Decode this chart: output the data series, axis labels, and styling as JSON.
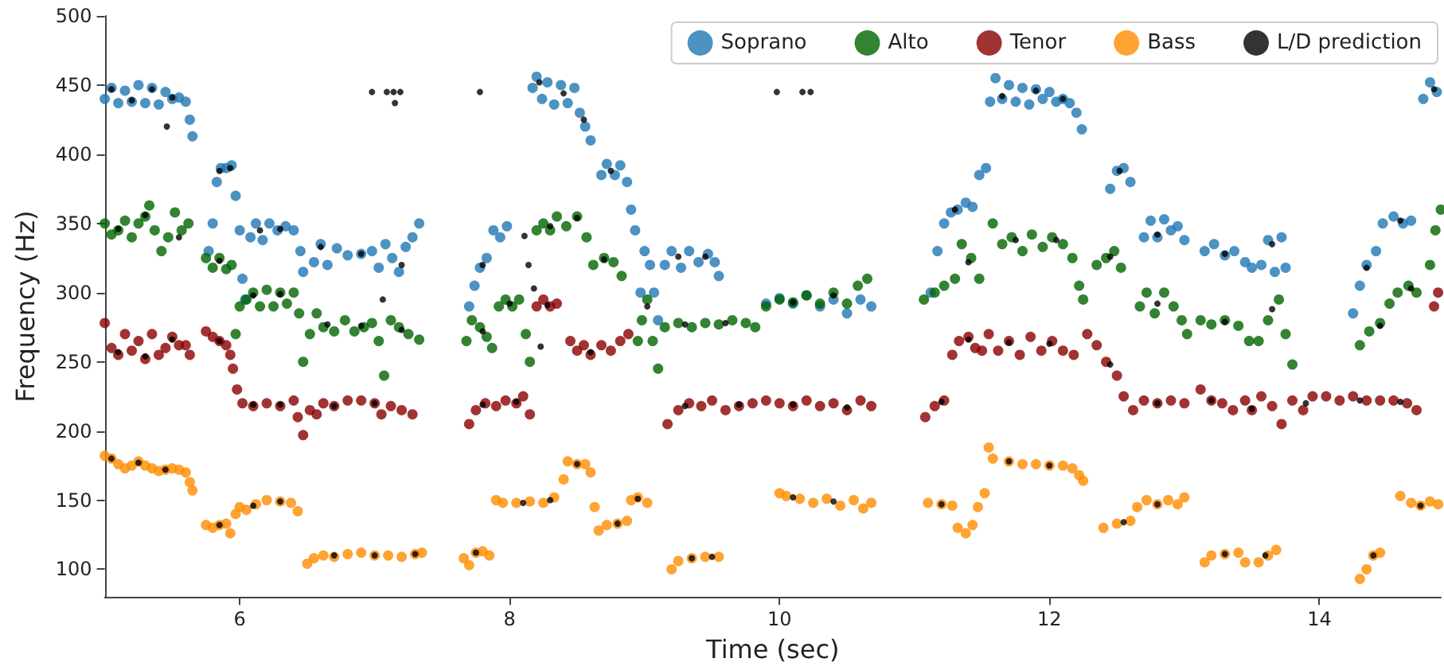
{
  "chart_data": {
    "type": "scatter",
    "xlabel": "Time (sec)",
    "ylabel": "Frequency (Hz)",
    "xlim": [
      5,
      14.9
    ],
    "ylim": [
      80,
      500
    ],
    "xticks": [
      6,
      8,
      10,
      12,
      14
    ],
    "yticks": [
      100,
      150,
      200,
      250,
      300,
      350,
      400,
      450,
      500
    ],
    "legend": "top right",
    "marker": "circle",
    "series": [
      {
        "name": "Soprano",
        "color": "#1f77b4",
        "x": [
          5.0,
          5.05,
          5.1,
          5.15,
          5.2,
          5.25,
          5.3,
          5.35,
          5.4,
          5.45,
          5.5,
          5.55,
          5.6,
          5.63,
          5.65,
          5.77,
          5.8,
          5.83,
          5.86,
          5.9,
          5.94,
          5.97,
          6.0,
          6.02,
          6.04,
          6.08,
          6.12,
          6.17,
          6.22,
          6.28,
          6.34,
          6.4,
          6.45,
          6.47,
          6.55,
          6.6,
          6.65,
          6.72,
          6.8,
          6.9,
          6.98,
          7.03,
          7.08,
          7.13,
          7.18,
          7.23,
          7.28,
          7.33,
          7.7,
          7.74,
          7.78,
          7.83,
          7.88,
          7.93,
          7.98,
          8.17,
          8.2,
          8.24,
          8.28,
          8.33,
          8.38,
          8.43,
          8.48,
          8.52,
          8.56,
          8.6,
          8.68,
          8.72,
          8.78,
          8.82,
          8.87,
          8.9,
          8.93,
          8.97,
          9.0,
          9.04,
          9.07,
          9.1,
          9.15,
          9.2,
          9.27,
          9.33,
          9.4,
          9.47,
          9.52,
          9.55,
          9.9,
          10.0,
          10.1,
          10.2,
          10.3,
          10.4,
          10.5,
          10.6,
          10.68,
          11.12,
          11.17,
          11.22,
          11.27,
          11.32,
          11.38,
          11.43,
          11.48,
          11.53,
          11.56,
          11.6,
          11.65,
          11.7,
          11.75,
          11.8,
          11.85,
          11.9,
          11.95,
          12.0,
          12.05,
          12.1,
          12.15,
          12.2,
          12.24,
          12.45,
          12.5,
          12.55,
          12.6,
          12.7,
          12.75,
          12.8,
          12.85,
          12.9,
          12.95,
          13.0,
          13.15,
          13.22,
          13.3,
          13.37,
          13.45,
          13.5,
          13.57,
          13.62,
          13.67,
          13.72,
          13.75,
          14.25,
          14.3,
          14.35,
          14.42,
          14.47,
          14.55,
          14.62,
          14.68,
          14.77,
          14.82,
          14.87
        ],
        "values": [
          440,
          448,
          437,
          446,
          438,
          450,
          437,
          448,
          436,
          445,
          440,
          441,
          438,
          425,
          413,
          330,
          350,
          380,
          390,
          390,
          392,
          370,
          345,
          310,
          295,
          340,
          350,
          338,
          350,
          345,
          348,
          345,
          330,
          315,
          322,
          335,
          320,
          332,
          327,
          328,
          330,
          318,
          335,
          325,
          315,
          333,
          340,
          350,
          290,
          305,
          318,
          325,
          345,
          340,
          348,
          448,
          456,
          440,
          452,
          436,
          450,
          437,
          448,
          430,
          420,
          410,
          385,
          393,
          385,
          392,
          380,
          360,
          345,
          300,
          330,
          320,
          300,
          280,
          320,
          330,
          318,
          330,
          322,
          328,
          322,
          312,
          292,
          296,
          292,
          298,
          290,
          295,
          285,
          295,
          290,
          300,
          330,
          350,
          358,
          360,
          365,
          362,
          385,
          390,
          438,
          455,
          440,
          450,
          438,
          448,
          436,
          447,
          440,
          445,
          438,
          440,
          437,
          430,
          418,
          375,
          388,
          390,
          380,
          340,
          352,
          340,
          353,
          345,
          348,
          338,
          330,
          335,
          327,
          330,
          322,
          318,
          320,
          338,
          315,
          340,
          318,
          285,
          305,
          320,
          330,
          350,
          355,
          350,
          352,
          440,
          452,
          445
        ]
      },
      {
        "name": "Alto",
        "color": "#006400",
        "x": [
          5.0,
          5.05,
          5.1,
          5.15,
          5.2,
          5.25,
          5.3,
          5.33,
          5.37,
          5.42,
          5.47,
          5.52,
          5.57,
          5.62,
          5.75,
          5.8,
          5.85,
          5.9,
          5.94,
          5.97,
          6.0,
          6.05,
          6.1,
          6.15,
          6.2,
          6.25,
          6.3,
          6.35,
          6.4,
          6.44,
          6.47,
          6.52,
          6.57,
          6.62,
          6.7,
          6.78,
          6.85,
          6.92,
          6.98,
          7.03,
          7.07,
          7.12,
          7.18,
          7.25,
          7.33,
          7.68,
          7.72,
          7.78,
          7.83,
          7.87,
          7.92,
          7.97,
          8.02,
          8.07,
          8.12,
          8.15,
          8.2,
          8.25,
          8.3,
          8.35,
          8.42,
          8.5,
          8.57,
          8.62,
          8.7,
          8.77,
          8.83,
          8.95,
          8.98,
          9.02,
          9.06,
          9.1,
          9.15,
          9.25,
          9.35,
          9.45,
          9.55,
          9.65,
          9.75,
          9.82,
          9.9,
          10.0,
          10.1,
          10.2,
          10.3,
          10.4,
          10.5,
          10.58,
          10.65,
          11.07,
          11.15,
          11.22,
          11.3,
          11.35,
          11.42,
          11.48,
          11.58,
          11.65,
          11.72,
          11.8,
          11.87,
          11.95,
          12.02,
          12.1,
          12.17,
          12.22,
          12.25,
          12.35,
          12.42,
          12.48,
          12.53,
          12.67,
          12.72,
          12.78,
          12.85,
          12.92,
          12.98,
          13.02,
          13.12,
          13.2,
          13.3,
          13.4,
          13.48,
          13.55,
          13.62,
          13.7,
          13.75,
          13.8,
          14.3,
          14.37,
          14.45,
          14.52,
          14.58,
          14.66,
          14.72,
          14.82,
          14.86,
          14.9
        ],
        "values": [
          350,
          342,
          345,
          352,
          340,
          350,
          355,
          363,
          345,
          330,
          340,
          358,
          345,
          350,
          325,
          318,
          325,
          317,
          320,
          270,
          290,
          295,
          300,
          290,
          302,
          290,
          300,
          292,
          300,
          285,
          250,
          270,
          285,
          275,
          272,
          280,
          272,
          275,
          278,
          265,
          240,
          280,
          275,
          270,
          266,
          265,
          280,
          275,
          268,
          260,
          290,
          295,
          290,
          295,
          270,
          250,
          345,
          350,
          345,
          355,
          348,
          355,
          340,
          320,
          325,
          322,
          312,
          265,
          280,
          295,
          265,
          245,
          275,
          278,
          275,
          278,
          277,
          280,
          278,
          275,
          290,
          295,
          293,
          298,
          292,
          300,
          292,
          305,
          310,
          295,
          300,
          305,
          310,
          335,
          325,
          310,
          350,
          335,
          340,
          330,
          342,
          333,
          340,
          335,
          325,
          305,
          295,
          320,
          325,
          330,
          318,
          290,
          300,
          285,
          300,
          290,
          280,
          270,
          280,
          277,
          280,
          276,
          265,
          265,
          280,
          295,
          270,
          248,
          262,
          272,
          278,
          292,
          300,
          305,
          300,
          320,
          345,
          360
        ]
      },
      {
        "name": "Tenor",
        "color": "#8b0000",
        "x": [
          5.0,
          5.05,
          5.1,
          5.15,
          5.2,
          5.25,
          5.3,
          5.35,
          5.4,
          5.45,
          5.5,
          5.55,
          5.6,
          5.63,
          5.75,
          5.8,
          5.85,
          5.9,
          5.93,
          5.95,
          5.98,
          6.02,
          6.1,
          6.2,
          6.3,
          6.4,
          6.43,
          6.47,
          6.52,
          6.57,
          6.62,
          6.7,
          6.8,
          6.9,
          7.0,
          7.05,
          7.12,
          7.2,
          7.28,
          7.7,
          7.75,
          7.82,
          7.9,
          7.97,
          8.05,
          8.1,
          8.15,
          8.2,
          8.25,
          8.3,
          8.35,
          8.45,
          8.5,
          8.55,
          8.6,
          8.68,
          8.75,
          8.82,
          8.88,
          9.17,
          9.25,
          9.33,
          9.42,
          9.5,
          9.6,
          9.7,
          9.8,
          9.9,
          10.0,
          10.1,
          10.2,
          10.3,
          10.4,
          10.5,
          10.6,
          10.68,
          11.08,
          11.15,
          11.22,
          11.28,
          11.33,
          11.4,
          11.45,
          11.5,
          11.55,
          11.62,
          11.7,
          11.78,
          11.86,
          11.94,
          12.02,
          12.1,
          12.18,
          12.28,
          12.35,
          12.42,
          12.5,
          12.55,
          12.62,
          12.7,
          12.8,
          12.9,
          13.0,
          13.12,
          13.2,
          13.28,
          13.36,
          13.45,
          13.5,
          13.57,
          13.65,
          13.72,
          13.8,
          13.88,
          13.95,
          14.05,
          14.15,
          14.25,
          14.35,
          14.45,
          14.55,
          14.65,
          14.72,
          14.85,
          14.88
        ],
        "values": [
          278,
          260,
          255,
          270,
          258,
          265,
          252,
          270,
          255,
          260,
          268,
          262,
          262,
          255,
          272,
          268,
          265,
          262,
          255,
          245,
          230,
          220,
          218,
          220,
          218,
          222,
          210,
          197,
          215,
          212,
          220,
          218,
          222,
          222,
          220,
          212,
          218,
          215,
          212,
          205,
          215,
          220,
          218,
          222,
          220,
          225,
          212,
          290,
          295,
          290,
          292,
          265,
          258,
          262,
          255,
          262,
          258,
          265,
          270,
          205,
          215,
          220,
          218,
          222,
          215,
          218,
          220,
          222,
          220,
          218,
          222,
          218,
          220,
          215,
          222,
          218,
          210,
          218,
          222,
          255,
          265,
          268,
          260,
          258,
          270,
          258,
          265,
          255,
          268,
          258,
          265,
          258,
          255,
          270,
          262,
          250,
          240,
          225,
          215,
          222,
          220,
          222,
          220,
          230,
          222,
          220,
          215,
          222,
          215,
          225,
          218,
          205,
          222,
          215,
          225,
          225,
          222,
          225,
          222,
          222,
          222,
          220,
          215,
          290,
          300
        ]
      },
      {
        "name": "Bass",
        "color": "#ff8c00",
        "x": [
          5.0,
          5.05,
          5.1,
          5.15,
          5.2,
          5.25,
          5.3,
          5.35,
          5.4,
          5.45,
          5.5,
          5.55,
          5.6,
          5.63,
          5.65,
          5.75,
          5.8,
          5.85,
          5.9,
          5.93,
          5.97,
          6.0,
          6.05,
          6.12,
          6.2,
          6.3,
          6.38,
          6.43,
          6.5,
          6.55,
          6.62,
          6.7,
          6.8,
          6.9,
          7.0,
          7.1,
          7.2,
          7.3,
          7.35,
          7.66,
          7.7,
          7.75,
          7.8,
          7.85,
          7.9,
          7.95,
          8.05,
          8.15,
          8.25,
          8.33,
          8.4,
          8.43,
          8.5,
          8.56,
          8.6,
          8.63,
          8.66,
          8.72,
          8.8,
          8.87,
          8.9,
          8.95,
          9.02,
          9.2,
          9.25,
          9.35,
          9.45,
          9.55,
          10.0,
          10.05,
          10.15,
          10.25,
          10.35,
          10.45,
          10.55,
          10.62,
          10.68,
          11.1,
          11.2,
          11.28,
          11.32,
          11.38,
          11.43,
          11.47,
          11.52,
          11.55,
          11.58,
          11.7,
          11.8,
          11.9,
          12.0,
          12.1,
          12.17,
          12.22,
          12.25,
          12.4,
          12.5,
          12.6,
          12.65,
          12.72,
          12.8,
          12.88,
          12.95,
          13.0,
          13.15,
          13.2,
          13.3,
          13.4,
          13.45,
          13.55,
          13.62,
          13.68,
          14.3,
          14.35,
          14.4,
          14.45,
          14.6,
          14.68,
          14.75,
          14.82,
          14.88
        ],
        "values": [
          182,
          180,
          176,
          173,
          175,
          178,
          175,
          173,
          171,
          172,
          173,
          172,
          170,
          163,
          157,
          132,
          130,
          132,
          133,
          126,
          140,
          145,
          143,
          147,
          150,
          149,
          148,
          142,
          104,
          108,
          110,
          109,
          111,
          112,
          110,
          110,
          109,
          111,
          112,
          108,
          103,
          112,
          113,
          110,
          150,
          148,
          148,
          149,
          148,
          152,
          165,
          178,
          176,
          176,
          170,
          145,
          128,
          132,
          133,
          135,
          150,
          152,
          148,
          100,
          106,
          108,
          109,
          109,
          155,
          153,
          151,
          148,
          151,
          146,
          150,
          144,
          148,
          148,
          147,
          146,
          130,
          126,
          132,
          145,
          155,
          188,
          180,
          178,
          176,
          176,
          175,
          175,
          173,
          168,
          164,
          130,
          133,
          135,
          145,
          150,
          147,
          150,
          147,
          152,
          105,
          110,
          111,
          112,
          105,
          105,
          110,
          114,
          93,
          100,
          110,
          112,
          153,
          148,
          146,
          149,
          147
        ]
      },
      {
        "name": "L/D prediction",
        "color": "#000000",
        "x": [
          5.05,
          5.2,
          5.35,
          5.5,
          5.85,
          5.93,
          6.15,
          6.3,
          6.6,
          6.9,
          7.2,
          7.8,
          8.22,
          8.4,
          8.55,
          8.75,
          9.25,
          9.45,
          11.3,
          11.65,
          11.9,
          12.1,
          12.52,
          12.8,
          13.3,
          13.65,
          14.35,
          14.6,
          14.85,
          5.1,
          5.3,
          5.55,
          5.85,
          6.1,
          6.3,
          6.65,
          6.9,
          7.2,
          7.8,
          8.0,
          8.3,
          8.5,
          8.7,
          9.02,
          9.3,
          9.6,
          10.1,
          10.4,
          11.4,
          11.75,
          12.05,
          12.45,
          12.8,
          13.3,
          13.65,
          14.45,
          14.68,
          5.1,
          5.3,
          5.5,
          5.85,
          6.1,
          6.3,
          6.7,
          7.0,
          7.8,
          8.05,
          8.28,
          8.6,
          9.3,
          9.7,
          10.1,
          10.5,
          11.2,
          11.4,
          11.7,
          12.0,
          12.45,
          12.8,
          13.2,
          13.5,
          13.9,
          14.3,
          14.6,
          5.05,
          5.25,
          5.45,
          5.85,
          6.1,
          6.3,
          6.7,
          7.0,
          7.3,
          7.75,
          8.1,
          8.3,
          8.5,
          8.8,
          8.95,
          9.35,
          9.5,
          10.1,
          10.4,
          11.2,
          11.7,
          12.0,
          12.55,
          12.8,
          13.3,
          13.6,
          14.4,
          14.75,
          5.46,
          6.98,
          7.09,
          7.14,
          7.15,
          7.19,
          7.78,
          8.11,
          8.14,
          8.18,
          9.98,
          10.17,
          10.23,
          7.06,
          8.23
        ],
        "values": [
          447,
          439,
          447,
          441,
          388,
          390,
          345,
          346,
          333,
          328,
          320,
          320,
          452,
          444,
          425,
          388,
          326,
          326,
          360,
          442,
          446,
          440,
          388,
          342,
          328,
          335,
          318,
          352,
          447,
          346,
          356,
          340,
          323,
          298,
          299,
          277,
          276,
          273,
          272,
          292,
          348,
          354,
          324,
          290,
          277,
          278,
          293,
          298,
          322,
          338,
          338,
          326,
          292,
          279,
          288,
          276,
          303,
          257,
          254,
          266,
          265,
          219,
          219,
          218,
          220,
          219,
          221,
          291,
          257,
          218,
          219,
          219,
          217,
          221,
          266,
          264,
          263,
          248,
          220,
          222,
          216,
          220,
          222,
          221,
          180,
          177,
          172,
          132,
          146,
          149,
          110,
          110,
          111,
          112,
          148,
          150,
          176,
          133,
          151,
          108,
          109,
          152,
          149,
          147,
          178,
          175,
          134,
          147,
          111,
          110,
          110,
          146,
          420,
          445,
          445,
          445,
          437,
          445,
          445,
          341,
          320,
          303,
          445,
          445,
          445,
          295,
          261
        ]
      }
    ]
  }
}
